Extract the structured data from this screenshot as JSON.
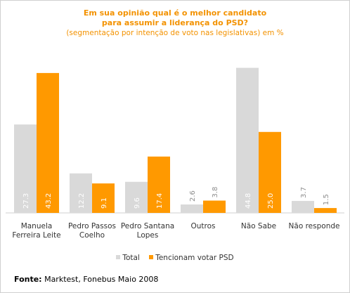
{
  "chart_data": {
    "type": "bar",
    "title_lines": [
      "Em sua opinião qual é o melhor candidato",
      "para assumir a liderança do PSD?"
    ],
    "subtitle": "(segmentação por intenção de voto nas legislativas) em %",
    "categories": [
      [
        "Manuela",
        "Ferreira Leite"
      ],
      [
        "Pedro Passos",
        "Coelho"
      ],
      [
        "Pedro Santana",
        "Lopes"
      ],
      [
        "Outros"
      ],
      [
        "Não Sabe"
      ],
      [
        "Não responde"
      ]
    ],
    "series": [
      {
        "name": "Total",
        "color": "#d9d9d9",
        "values": [
          27.3,
          12.2,
          9.6,
          2.6,
          44.8,
          3.7
        ],
        "labels": [
          "27.3",
          "12.2",
          "9.6",
          "2.6",
          "44.8",
          "3.7"
        ]
      },
      {
        "name": "Tencionam votar PSD",
        "color": "#ff9900",
        "values": [
          43.2,
          9.1,
          17.4,
          3.8,
          25.0,
          1.5
        ],
        "labels": [
          "43.2",
          "9.1",
          "17.4",
          "3.8",
          "25.0",
          "1.5"
        ]
      }
    ],
    "ylim": [
      0,
      46
    ],
    "data_label_color": "#ffffff",
    "data_label_color_small": "#8c8c8c",
    "legend_position": "bottom"
  },
  "source": {
    "label": "Fonte:",
    "text": " Marktest, Fonebus Maio 2008"
  }
}
